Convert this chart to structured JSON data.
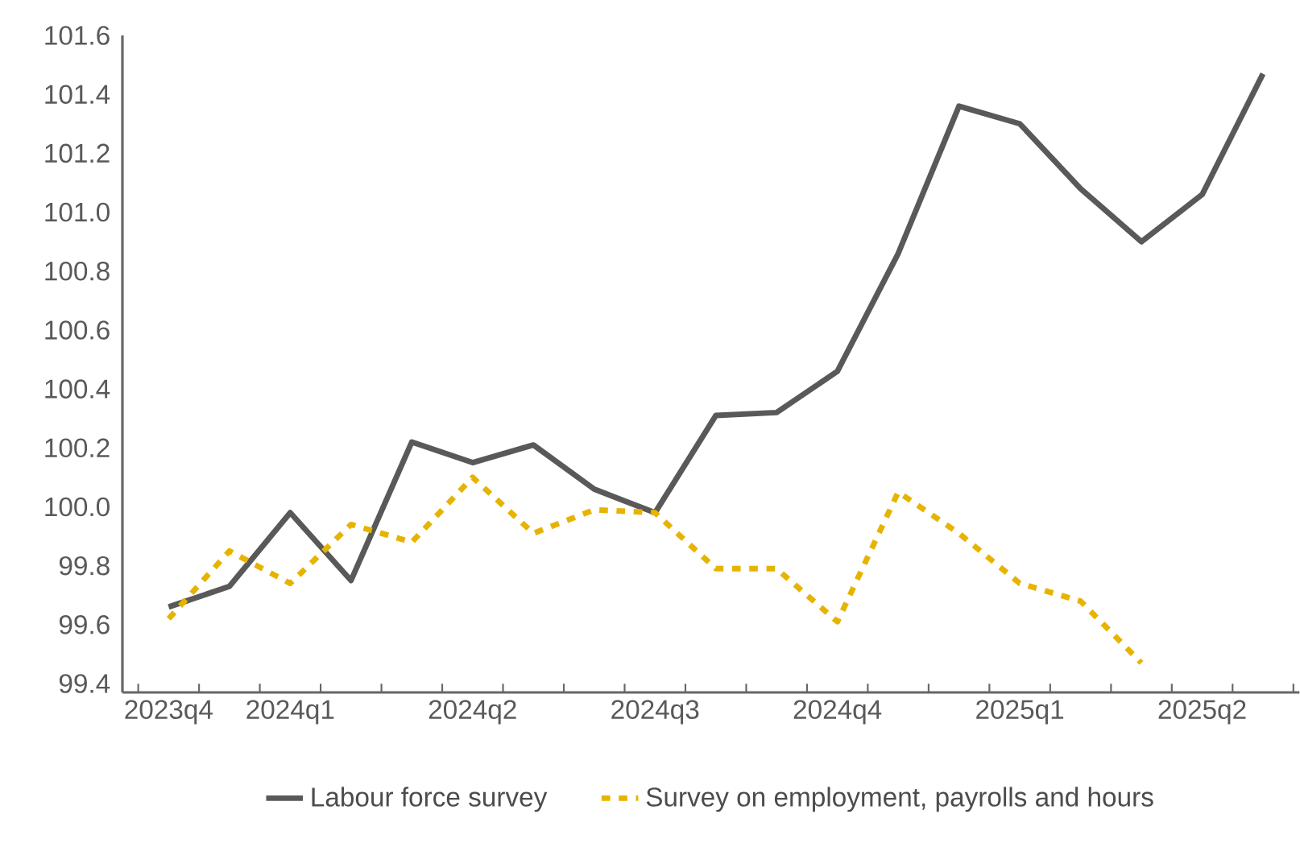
{
  "chart_data": {
    "type": "line",
    "categories": [
      "2023q4",
      null,
      "2024q1",
      null,
      null,
      "2024q2",
      null,
      null,
      "2024q3",
      null,
      null,
      "2024q4",
      null,
      null,
      "2025q1",
      null,
      null,
      "2025q2",
      null
    ],
    "series": [
      {
        "name": "Labour force survey",
        "color": "#595959",
        "line_style": "solid",
        "values": [
          99.66,
          99.73,
          99.98,
          99.75,
          100.22,
          100.15,
          100.21,
          100.06,
          99.98,
          100.31,
          100.32,
          100.46,
          100.86,
          101.36,
          101.3,
          101.08,
          100.9,
          101.06,
          101.47
        ]
      },
      {
        "name": "Survey on employment, payrolls and hours",
        "color": "#e6b400",
        "line_style": "dashed",
        "values": [
          99.62,
          99.85,
          99.74,
          99.94,
          99.88,
          100.1,
          99.91,
          99.99,
          99.98,
          99.79,
          99.79,
          99.61,
          100.05,
          99.91,
          99.74,
          99.68,
          99.47,
          null,
          null
        ]
      }
    ],
    "ylim": [
      99.37,
      101.6
    ],
    "yticks": [
      99.4,
      99.6,
      99.8,
      {
        "value": 100,
        "label": "100.0"
      },
      100.2,
      100.4,
      100.6,
      100.8,
      {
        "value": 101,
        "label": "101.0"
      },
      101.2,
      101.4,
      101.6
    ],
    "grid": false,
    "legend": "bottom",
    "marker": "none"
  }
}
